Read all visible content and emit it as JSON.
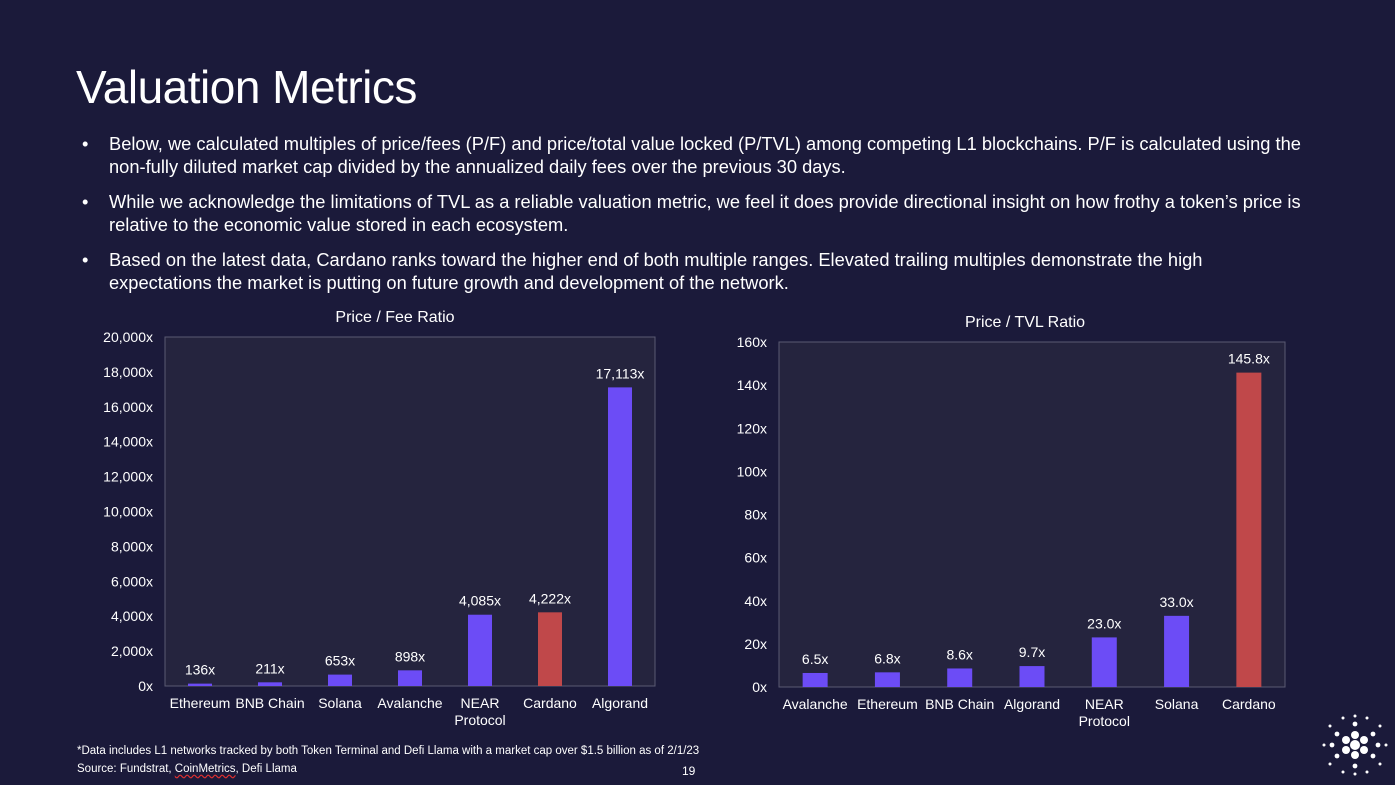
{
  "slide": {
    "title": "Valuation Metrics",
    "bullets": [
      "Below, we calculated multiples of price/fees (P/F) and price/total value locked (P/TVL) among competing L1 blockchains. P/F is calculated using the non-fully diluted market cap divided by the annualized daily fees over the previous 30 days.",
      "While we acknowledge the limitations of TVL as a reliable valuation metric, we feel it does provide directional insight on how frothy a token’s price is relative to the economic value stored in each ecosystem.",
      "Based on the latest data, Cardano ranks toward the higher end of both multiple ranges. Elevated trailing multiples demonstrate the high expectations the market is putting on future growth and development of the network."
    ],
    "footnote": "*Data includes L1 networks tracked by both Token Terminal and Defi Llama with a market cap over $1.5 billion as of 2/1/23",
    "source_prefix": "Source: Fundstrat, ",
    "source_underlined": "CoinMetrics",
    "source_suffix": ", Defi Llama",
    "page_number": "19"
  },
  "colors": {
    "background": "#1b1a3a",
    "plot_background": "#25243e",
    "bar": "#6c4cf6",
    "highlight": "#c0484a",
    "text": "#ffffff"
  },
  "chart_data": [
    {
      "type": "bar",
      "title": "Price / Fee Ratio",
      "categories": [
        "Ethereum",
        "BNB Chain",
        "Solana",
        "Avalanche",
        "NEAR Protocol",
        "Cardano",
        "Algorand"
      ],
      "values": [
        136,
        211,
        653,
        898,
        4085,
        4222,
        17113
      ],
      "data_labels": [
        "136x",
        "211x",
        "653x",
        "898x",
        "4,085x",
        "4,222x",
        "17,113x"
      ],
      "highlight_category": "Cardano",
      "ylim": [
        0,
        20000
      ],
      "y_ticks": [
        0,
        2000,
        4000,
        6000,
        8000,
        10000,
        12000,
        14000,
        16000,
        18000,
        20000
      ],
      "y_tick_labels": [
        "0x",
        "2,000x",
        "4,000x",
        "6,000x",
        "8,000x",
        "10,000x",
        "12,000x",
        "14,000x",
        "16,000x",
        "18,000x",
        "20,000x"
      ],
      "grid": false
    },
    {
      "type": "bar",
      "title": "Price / TVL Ratio",
      "categories": [
        "Avalanche",
        "Ethereum",
        "BNB Chain",
        "Algorand",
        "NEAR Protocol",
        "Solana",
        "Cardano"
      ],
      "values": [
        6.5,
        6.8,
        8.6,
        9.7,
        23.0,
        33.0,
        145.8
      ],
      "data_labels": [
        "6.5x",
        "6.8x",
        "8.6x",
        "9.7x",
        "23.0x",
        "33.0x",
        "145.8x"
      ],
      "highlight_category": "Cardano",
      "ylim": [
        0,
        160
      ],
      "y_ticks": [
        0,
        20,
        40,
        60,
        80,
        100,
        120,
        140,
        160
      ],
      "y_tick_labels": [
        "0x",
        "20x",
        "40x",
        "60x",
        "80x",
        "100x",
        "120x",
        "140x",
        "160x"
      ],
      "grid": false
    }
  ]
}
